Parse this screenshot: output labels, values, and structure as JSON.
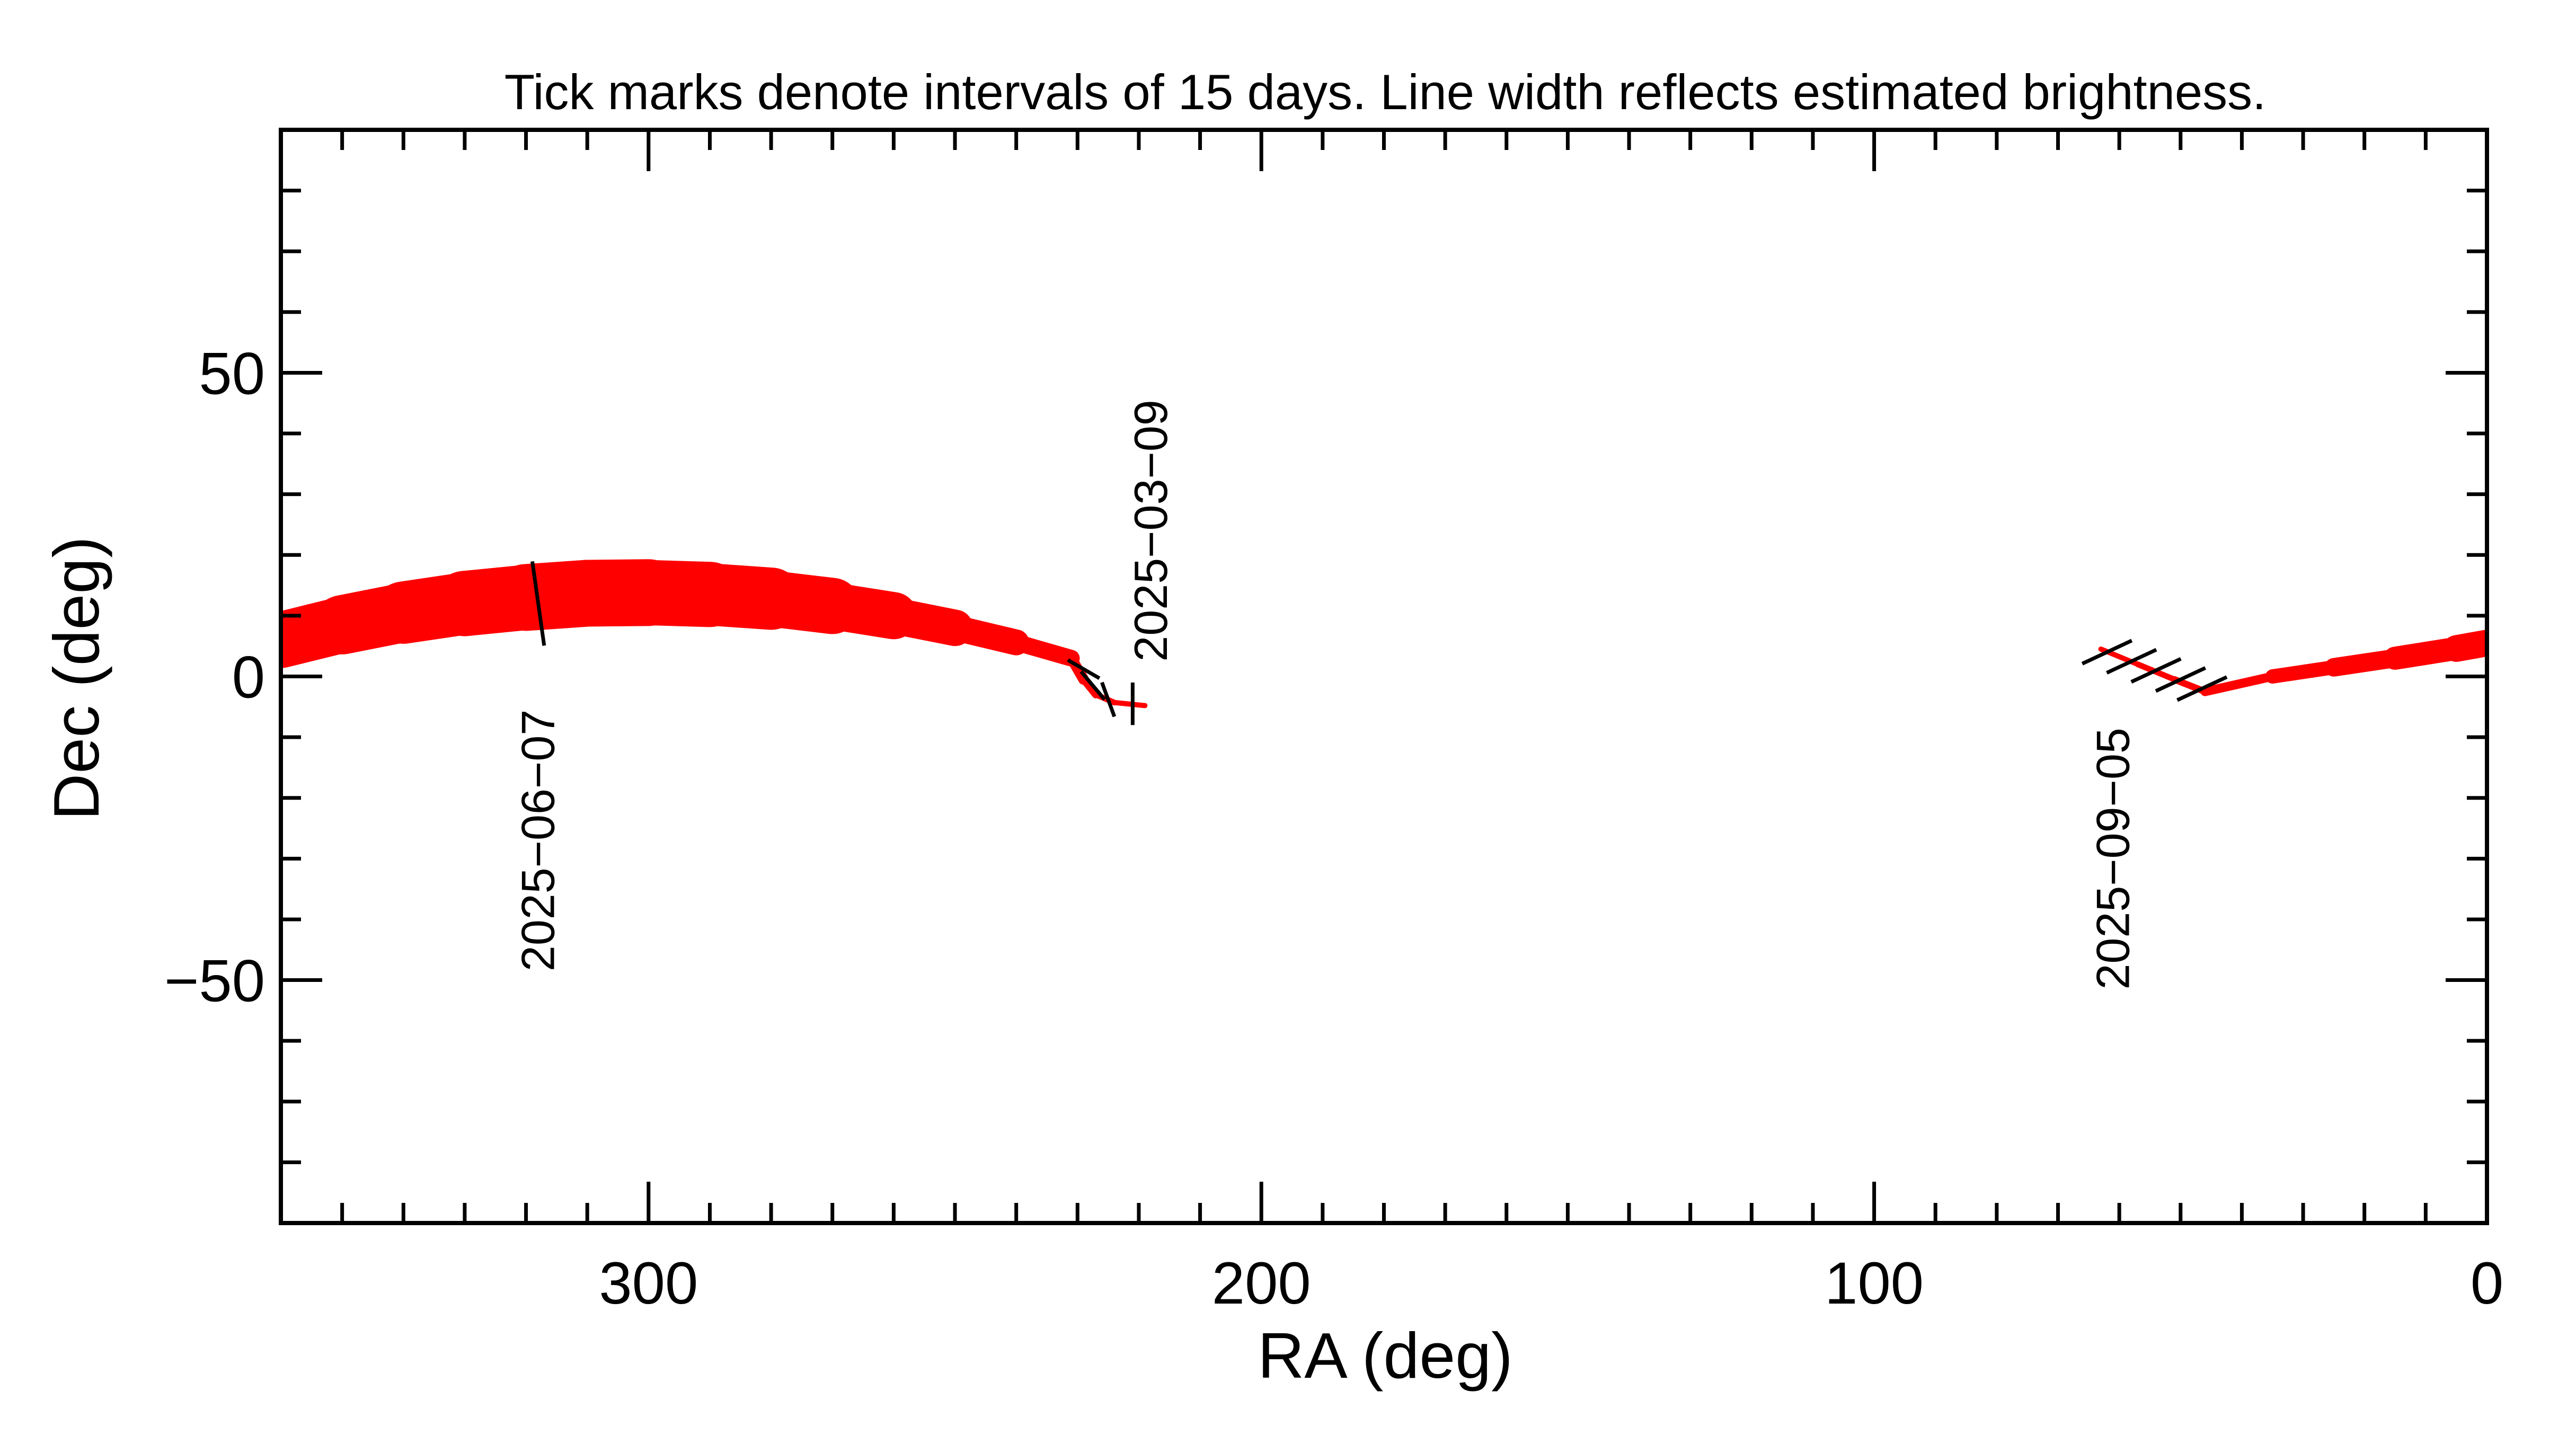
{
  "chart_data": {
    "type": "line",
    "title": "Tick marks denote intervals of 15 days.  Line width reflects estimated brightness.",
    "xlabel": "RA (deg)",
    "ylabel": "Dec (deg)",
    "xlim": [
      360,
      0
    ],
    "ylim": [
      -90,
      90
    ],
    "x_ticks": [
      300,
      200,
      100,
      0
    ],
    "y_ticks": [
      50,
      0,
      -50
    ],
    "grid": false,
    "colors": {
      "track": "#ff0000",
      "ticks": "#000000",
      "axes": "#000000"
    },
    "segments": [
      {
        "points": [
          {
            "ra": 360,
            "dec": 6
          },
          {
            "ra": 350,
            "dec": 8.5
          },
          {
            "ra": 340,
            "dec": 10.5
          },
          {
            "ra": 330,
            "dec": 12
          },
          {
            "ra": 320,
            "dec": 13
          },
          {
            "ra": 310,
            "dec": 13.7
          },
          {
            "ra": 300,
            "dec": 13.8
          },
          {
            "ra": 290,
            "dec": 13.5
          },
          {
            "ra": 280,
            "dec": 12.8
          },
          {
            "ra": 270,
            "dec": 11.6
          },
          {
            "ra": 260,
            "dec": 10
          },
          {
            "ra": 250,
            "dec": 8
          },
          {
            "ra": 240,
            "dec": 5.6
          },
          {
            "ra": 231,
            "dec": 3
          }
        ],
        "widths": [
          9,
          9.5,
          10,
          10.5,
          11,
          11,
          11,
          10.5,
          10,
          8.5,
          7,
          5,
          3.5,
          2
        ]
      },
      {
        "points": [
          {
            "ra": 231,
            "dec": 3
          },
          {
            "ra": 229,
            "dec": -0.5
          },
          {
            "ra": 227,
            "dec": -3
          },
          {
            "ra": 224,
            "dec": -4.3
          },
          {
            "ra": 219,
            "dec": -4.8
          }
        ],
        "widths": [
          2,
          1.5,
          1,
          0.9,
          0.8
        ]
      },
      {
        "points": [
          {
            "ra": 63,
            "dec": 4.5
          },
          {
            "ra": 57,
            "dec": 2
          },
          {
            "ra": 51,
            "dec": -0.5
          },
          {
            "ra": 46,
            "dec": -2.5
          }
        ],
        "widths": [
          0.8,
          0.9,
          1,
          1.2
        ]
      },
      {
        "points": [
          {
            "ra": 46,
            "dec": -2.5
          },
          {
            "ra": 35,
            "dec": 0
          },
          {
            "ra": 25,
            "dec": 1.5
          },
          {
            "ra": 15,
            "dec": 3
          },
          {
            "ra": 5,
            "dec": 4.6
          },
          {
            "ra": 0,
            "dec": 5.5
          }
        ],
        "widths": [
          1,
          2,
          2.7,
          3.4,
          4.2,
          4.6
        ]
      }
    ],
    "tick_marks": [
      {
        "ra": 318,
        "dec": 12,
        "len": 14,
        "angle_deg": -8
      },
      {
        "ra": 229,
        "dec": 1.2,
        "len": 6,
        "angle_deg": -60
      },
      {
        "ra": 227.5,
        "dec": -1.5,
        "len": 6,
        "angle_deg": -40
      },
      {
        "ra": 225,
        "dec": -3.8,
        "len": 6,
        "angle_deg": -20
      },
      {
        "ra": 221,
        "dec": -4.5,
        "len": 7,
        "angle_deg": 0
      },
      {
        "ra": 62,
        "dec": 4,
        "len": 9,
        "angle_deg": -115
      },
      {
        "ra": 58,
        "dec": 2.5,
        "len": 9,
        "angle_deg": -115
      },
      {
        "ra": 54,
        "dec": 1,
        "len": 9,
        "angle_deg": -115
      },
      {
        "ra": 50,
        "dec": -0.5,
        "len": 9,
        "angle_deg": -115
      },
      {
        "ra": 46.5,
        "dec": -2,
        "len": 9,
        "angle_deg": -115
      }
    ],
    "annotations": [
      {
        "text": "2025−06−07",
        "ra": 318,
        "dec": -27
      },
      {
        "text": "2025−03−09",
        "ra": 218,
        "dec": 24
      },
      {
        "text": "2025−09−05",
        "ra": 61,
        "dec": -30
      }
    ]
  }
}
